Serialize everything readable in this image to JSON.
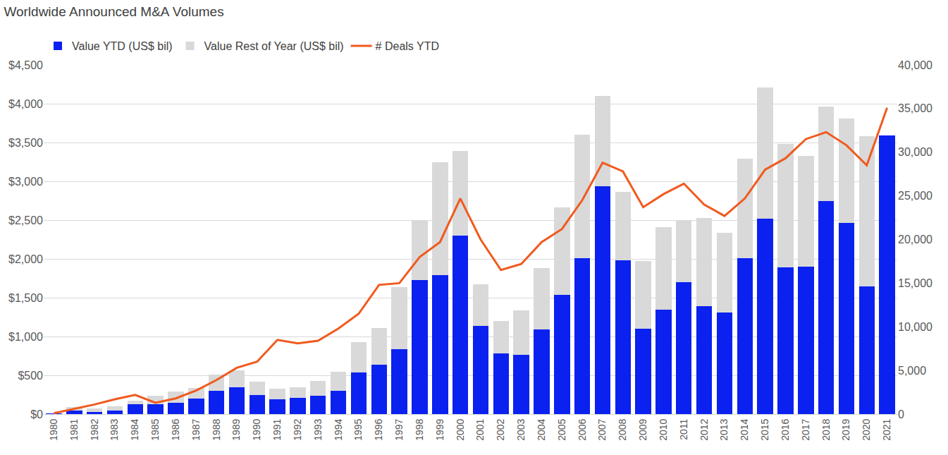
{
  "chart_data": {
    "type": "bar",
    "title": "Worldwide Announced M&A Volumes",
    "categories": [
      "1980",
      "1981",
      "1982",
      "1983",
      "1984",
      "1985",
      "1986",
      "1987",
      "1988",
      "1989",
      "1990",
      "1991",
      "1992",
      "1993",
      "1994",
      "1995",
      "1996",
      "1997",
      "1998",
      "1999",
      "2000",
      "2001",
      "2002",
      "2003",
      "2004",
      "2005",
      "2006",
      "2007",
      "2008",
      "2009",
      "2010",
      "2011",
      "2012",
      "2013",
      "2014",
      "2015",
      "2016",
      "2017",
      "2018",
      "2019",
      "2020",
      "2021"
    ],
    "stacked": true,
    "grid": true,
    "legend": "top left",
    "series": [
      {
        "name": "Value YTD (US$ bil)",
        "type": "bar",
        "color": "#0a21f0",
        "values": [
          5,
          50,
          30,
          50,
          130,
          130,
          150,
          200,
          300,
          345,
          250,
          195,
          205,
          235,
          300,
          535,
          640,
          840,
          1730,
          1790,
          2300,
          1140,
          780,
          760,
          1090,
          1540,
          2010,
          2940,
          1980,
          1100,
          1350,
          1700,
          1390,
          1310,
          2010,
          2520,
          1890,
          1900,
          2750,
          2460,
          1650,
          3590
        ]
      },
      {
        "name": "Value Rest of Year (US$ bil)",
        "type": "bar",
        "color": "#d9d9d9",
        "values": [
          5,
          40,
          40,
          50,
          40,
          110,
          140,
          140,
          210,
          215,
          170,
          135,
          145,
          195,
          245,
          395,
          470,
          800,
          770,
          1460,
          1090,
          530,
          420,
          580,
          790,
          1120,
          1590,
          1160,
          880,
          870,
          1060,
          800,
          1140,
          1030,
          1280,
          1690,
          1590,
          1430,
          1210,
          1350,
          1930,
          null
        ]
      },
      {
        "name": "# Deals YTD",
        "type": "line",
        "color": "#f05a1e",
        "axis": "y2",
        "values": [
          100,
          600,
          1100,
          1700,
          2200,
          1300,
          1800,
          2700,
          3900,
          5300,
          6000,
          8500,
          8100,
          8400,
          9800,
          11500,
          14800,
          15000,
          18000,
          19700,
          24700,
          20000,
          16500,
          17200,
          19700,
          21200,
          24500,
          28800,
          27800,
          23700,
          25200,
          26400,
          24000,
          22700,
          24700,
          28000,
          29300,
          31500,
          32300,
          30800,
          28500,
          35100
        ]
      }
    ],
    "ylim": [
      0,
      4500
    ],
    "yticks": [
      {
        "value": 0,
        "label": "$0"
      },
      {
        "value": 500,
        "label": "$500"
      },
      {
        "value": 1000,
        "label": "$1,000"
      },
      {
        "value": 1500,
        "label": "$1,500"
      },
      {
        "value": 2000,
        "label": "$2,000"
      },
      {
        "value": 2500,
        "label": "$2,500"
      },
      {
        "value": 3000,
        "label": "$3,000"
      },
      {
        "value": 3500,
        "label": "$3,500"
      },
      {
        "value": 4000,
        "label": "$4,000"
      },
      {
        "value": 4500,
        "label": "$4,500"
      }
    ],
    "y2lim": [
      0,
      40000
    ],
    "y2ticks": [
      0,
      {
        "value": 5000,
        "label": "5,000"
      },
      {
        "value": 10000,
        "label": "10,000"
      },
      {
        "value": 15000,
        "label": "15,000"
      },
      {
        "value": 20000,
        "label": "20,000"
      },
      {
        "value": 25000,
        "label": "25,000"
      },
      {
        "value": 30000,
        "label": "30,000"
      },
      {
        "value": 35000,
        "label": "35,000"
      },
      {
        "value": 40000,
        "label": "40,000"
      }
    ]
  }
}
